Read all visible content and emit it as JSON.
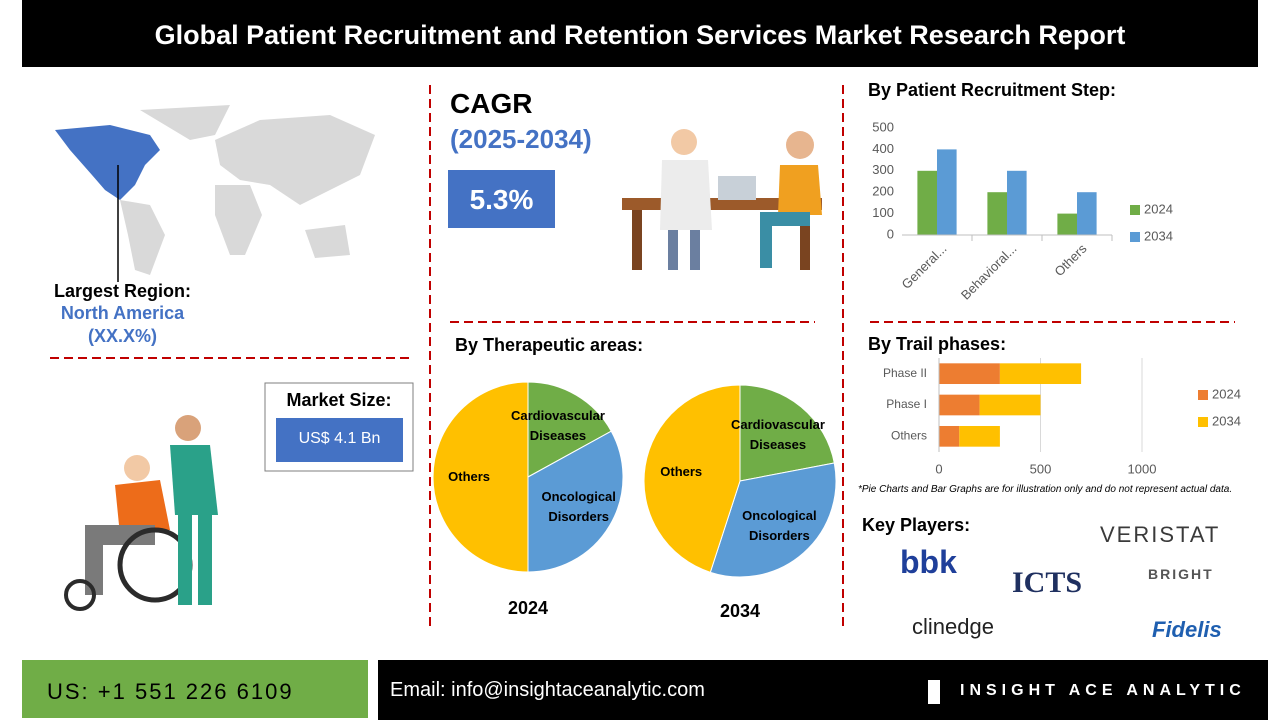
{
  "header": {
    "title": "Global Patient Recruitment and Retention Services Market Research Report"
  },
  "region": {
    "label": "Largest Region:",
    "name": "North America",
    "share": "(XX.X%)"
  },
  "cagr": {
    "label": "CAGR",
    "period": "(2025-2034)",
    "value": "5.3%"
  },
  "market_size": {
    "label": "Market Size:",
    "value": "US$ 4.1 Bn"
  },
  "therapeutic_title": "By Therapeutic areas:",
  "disclaimer": "*Pie Charts and Bar Graphs are for illustration only and do not represent actual data.",
  "key_players": {
    "title": "Key Players:",
    "logos": [
      "bbk",
      "VERISTAT",
      "ICTS",
      "BRIGHT",
      "clinedge",
      "Fidelis"
    ]
  },
  "footer": {
    "phone": "US: +1 551 226 6109",
    "email": "Email: info@insightaceanalytic.com",
    "brand": "INSIGHT ACE ANALYTIC"
  },
  "chart_data": [
    {
      "type": "pie",
      "title": "2024",
      "categories": [
        "Cardiovascular Diseases",
        "Oncological Disorders",
        "Others"
      ],
      "values": [
        17,
        33,
        50
      ],
      "colors": [
        "#70ad47",
        "#5b9bd5",
        "#ffc000"
      ]
    },
    {
      "type": "pie",
      "title": "2034",
      "categories": [
        "Cardiovascular Diseases",
        "Oncological Disorders",
        "Others"
      ],
      "values": [
        22,
        33,
        45
      ],
      "colors": [
        "#70ad47",
        "#5b9bd5",
        "#ffc000"
      ]
    },
    {
      "type": "bar",
      "title": "By Patient Recruitment Step:",
      "orientation": "vertical",
      "stacked": false,
      "categories": [
        "General...",
        "Behavioral...",
        "Others"
      ],
      "series": [
        {
          "name": "2024",
          "color": "#70ad47",
          "values": [
            300,
            200,
            100
          ]
        },
        {
          "name": "2034",
          "color": "#5b9bd5",
          "values": [
            400,
            300,
            200
          ]
        }
      ],
      "ylim": [
        0,
        500
      ],
      "yticks": [
        0,
        100,
        200,
        300,
        400,
        500
      ],
      "grid": false,
      "legend": "right"
    },
    {
      "type": "bar",
      "title": "By Trail phases:",
      "orientation": "horizontal",
      "stacked": true,
      "categories": [
        "Phase II",
        "Phase I",
        "Others"
      ],
      "series": [
        {
          "name": "2024",
          "color": "#ed7d31",
          "values": [
            300,
            200,
            100
          ]
        },
        {
          "name": "2034",
          "color": "#ffc000",
          "values": [
            400,
            300,
            200
          ]
        }
      ],
      "xlim": [
        0,
        1000
      ],
      "xticks": [
        0,
        500,
        1000
      ],
      "grid": true,
      "legend": "right"
    }
  ]
}
